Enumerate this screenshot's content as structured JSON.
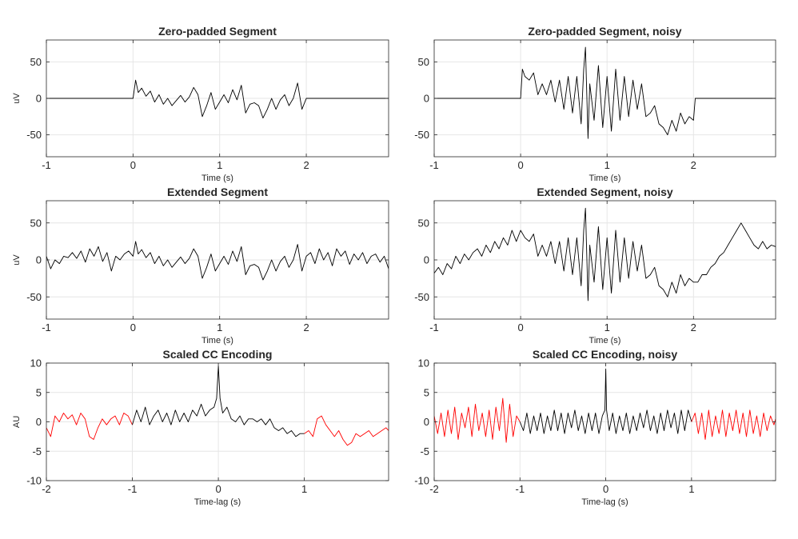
{
  "chart_data": [
    {
      "type": "line",
      "title": "Zero-padded Segment",
      "xlabel": "Time (s)",
      "ylabel": "uV",
      "xlim": [
        -1,
        2.95
      ],
      "ylim": [
        -80,
        80
      ],
      "xticks": [
        -1,
        0,
        1,
        2
      ],
      "yticks": [
        50,
        0,
        -50
      ],
      "grid": true,
      "series": [
        {
          "color": "#000000",
          "x": [
            -1,
            0.0,
            0.03,
            0.06,
            0.1,
            0.15,
            0.2,
            0.25,
            0.3,
            0.35,
            0.4,
            0.45,
            0.5,
            0.55,
            0.6,
            0.65,
            0.7,
            0.75,
            0.8,
            0.85,
            0.9,
            0.95,
            1.0,
            1.05,
            1.1,
            1.15,
            1.2,
            1.25,
            1.3,
            1.35,
            1.4,
            1.45,
            1.5,
            1.55,
            1.6,
            1.65,
            1.7,
            1.75,
            1.8,
            1.85,
            1.9,
            1.95,
            2.0,
            2.95
          ],
          "y": [
            0,
            0,
            25,
            8,
            14,
            3,
            10,
            -5,
            5,
            -8,
            0,
            -10,
            -3,
            4,
            -5,
            2,
            15,
            5,
            -25,
            -10,
            8,
            -15,
            -5,
            5,
            -6,
            12,
            -2,
            18,
            -20,
            -8,
            -6,
            -10,
            -27,
            -15,
            0,
            -15,
            -2,
            5,
            -10,
            0,
            21,
            -15,
            0,
            0
          ]
        }
      ]
    },
    {
      "type": "line",
      "title": "Zero-padded Segment, noisy",
      "xlabel": "Time (s)",
      "ylabel": "",
      "xlim": [
        -1,
        2.95
      ],
      "ylim": [
        -80,
        80
      ],
      "xticks": [
        -1,
        0,
        1,
        2
      ],
      "yticks": [
        50,
        0,
        -50
      ],
      "grid": true,
      "series": [
        {
          "color": "#000000",
          "x": [
            -1,
            0.0,
            0.02,
            0.05,
            0.1,
            0.15,
            0.2,
            0.25,
            0.3,
            0.35,
            0.4,
            0.45,
            0.5,
            0.55,
            0.6,
            0.65,
            0.7,
            0.73,
            0.75,
            0.78,
            0.8,
            0.85,
            0.9,
            0.95,
            1.0,
            1.05,
            1.1,
            1.15,
            1.2,
            1.25,
            1.3,
            1.35,
            1.4,
            1.45,
            1.5,
            1.55,
            1.6,
            1.65,
            1.7,
            1.75,
            1.8,
            1.85,
            1.9,
            1.95,
            2.0,
            2.02,
            2.95
          ],
          "y": [
            0,
            0,
            40,
            30,
            25,
            35,
            5,
            20,
            5,
            25,
            -5,
            25,
            -15,
            30,
            -20,
            30,
            -35,
            40,
            70,
            -55,
            20,
            -30,
            45,
            -40,
            30,
            -45,
            40,
            -30,
            30,
            -25,
            25,
            -15,
            20,
            -25,
            -20,
            -10,
            -35,
            -40,
            -50,
            -30,
            -45,
            -20,
            -35,
            -25,
            -30,
            0,
            0
          ]
        }
      ]
    },
    {
      "type": "line",
      "title": "Extended Segment",
      "xlabel": "Time (s)",
      "ylabel": "uV",
      "xlim": [
        -1,
        2.95
      ],
      "ylim": [
        -80,
        80
      ],
      "xticks": [
        -1,
        0,
        1,
        2
      ],
      "yticks": [
        50,
        0,
        -50
      ],
      "grid": true,
      "series": [
        {
          "color": "#000000",
          "x": [
            -1.0,
            -0.95,
            -0.9,
            -0.85,
            -0.8,
            -0.75,
            -0.7,
            -0.65,
            -0.6,
            -0.55,
            -0.5,
            -0.45,
            -0.4,
            -0.35,
            -0.3,
            -0.25,
            -0.2,
            -0.15,
            -0.1,
            -0.05,
            0.0,
            0.03,
            0.06,
            0.1,
            0.15,
            0.2,
            0.25,
            0.3,
            0.35,
            0.4,
            0.45,
            0.5,
            0.55,
            0.6,
            0.65,
            0.7,
            0.75,
            0.8,
            0.85,
            0.9,
            0.95,
            1.0,
            1.05,
            1.1,
            1.15,
            1.2,
            1.25,
            1.3,
            1.35,
            1.4,
            1.45,
            1.5,
            1.55,
            1.6,
            1.65,
            1.7,
            1.75,
            1.8,
            1.85,
            1.9,
            1.95,
            2.0,
            2.05,
            2.1,
            2.15,
            2.2,
            2.25,
            2.3,
            2.35,
            2.4,
            2.45,
            2.5,
            2.55,
            2.6,
            2.65,
            2.7,
            2.75,
            2.8,
            2.85,
            2.9,
            2.95
          ],
          "y": [
            5,
            -12,
            0,
            -5,
            5,
            3,
            10,
            2,
            12,
            -3,
            15,
            5,
            18,
            -2,
            10,
            -15,
            5,
            0,
            8,
            12,
            5,
            25,
            8,
            14,
            3,
            10,
            -5,
            5,
            -8,
            0,
            -10,
            -3,
            4,
            -5,
            2,
            15,
            5,
            -25,
            -10,
            8,
            -15,
            -5,
            5,
            -6,
            12,
            -2,
            18,
            -20,
            -8,
            -6,
            -10,
            -27,
            -15,
            0,
            -15,
            -2,
            5,
            -10,
            0,
            21,
            -15,
            5,
            10,
            -5,
            15,
            0,
            10,
            -8,
            15,
            5,
            12,
            -6,
            8,
            0,
            10,
            -5,
            5,
            8,
            -3,
            5,
            -12
          ]
        }
      ]
    },
    {
      "type": "line",
      "title": "Extended Segment, noisy",
      "xlabel": "Time (s)",
      "ylabel": "",
      "xlim": [
        -1,
        2.95
      ],
      "ylim": [
        -80,
        80
      ],
      "xticks": [
        -1,
        0,
        1,
        2
      ],
      "yticks": [
        50,
        0,
        -50
      ],
      "grid": true,
      "series": [
        {
          "color": "#000000",
          "x": [
            -1.0,
            -0.95,
            -0.9,
            -0.85,
            -0.8,
            -0.75,
            -0.7,
            -0.65,
            -0.6,
            -0.55,
            -0.5,
            -0.45,
            -0.4,
            -0.35,
            -0.3,
            -0.25,
            -0.2,
            -0.15,
            -0.1,
            -0.05,
            0.0,
            0.05,
            0.1,
            0.15,
            0.2,
            0.25,
            0.3,
            0.35,
            0.4,
            0.45,
            0.5,
            0.55,
            0.6,
            0.65,
            0.7,
            0.73,
            0.75,
            0.78,
            0.8,
            0.85,
            0.9,
            0.95,
            1.0,
            1.05,
            1.1,
            1.15,
            1.2,
            1.25,
            1.3,
            1.35,
            1.4,
            1.45,
            1.5,
            1.55,
            1.6,
            1.65,
            1.7,
            1.75,
            1.8,
            1.85,
            1.9,
            1.95,
            2.0,
            2.05,
            2.1,
            2.15,
            2.2,
            2.25,
            2.3,
            2.35,
            2.4,
            2.45,
            2.5,
            2.55,
            2.6,
            2.65,
            2.7,
            2.75,
            2.8,
            2.85,
            2.9,
            2.95
          ],
          "y": [
            -18,
            -10,
            -20,
            -5,
            -12,
            5,
            -5,
            8,
            0,
            10,
            15,
            5,
            20,
            10,
            25,
            15,
            30,
            20,
            40,
            25,
            40,
            30,
            25,
            35,
            5,
            20,
            5,
            25,
            -5,
            25,
            -15,
            30,
            -20,
            30,
            -35,
            40,
            70,
            -55,
            20,
            -30,
            45,
            -40,
            30,
            -45,
            40,
            -30,
            30,
            -25,
            25,
            -15,
            20,
            -25,
            -20,
            -10,
            -35,
            -40,
            -50,
            -30,
            -45,
            -20,
            -35,
            -25,
            -30,
            -30,
            -20,
            -20,
            -10,
            -5,
            5,
            10,
            20,
            30,
            40,
            50,
            40,
            30,
            20,
            15,
            25,
            15,
            20,
            18
          ]
        }
      ]
    },
    {
      "type": "line",
      "title": "Scaled CC Encoding",
      "xlabel": "Time-lag (s)",
      "ylabel": "AU",
      "xlim": [
        -2,
        1.98
      ],
      "ylim": [
        -10,
        10
      ],
      "xticks": [
        -2,
        -1,
        0,
        1
      ],
      "yticks": [
        10,
        5,
        0,
        -5,
        -10
      ],
      "grid": true,
      "series": [
        {
          "color": "#ff0000",
          "x": [
            -2.0,
            -1.95,
            -1.9,
            -1.85,
            -1.8,
            -1.75,
            -1.7,
            -1.65,
            -1.6,
            -1.55,
            -1.5,
            -1.45,
            -1.4,
            -1.35,
            -1.3,
            -1.25,
            -1.2,
            -1.15,
            -1.1,
            -1.05,
            -1.0
          ],
          "y": [
            -1,
            -2.5,
            1,
            0,
            1.5,
            0.5,
            1.2,
            -0.5,
            1.5,
            0.5,
            -2.5,
            -3,
            -1,
            0.5,
            -0.5,
            0.5,
            1,
            -0.5,
            1.5,
            1,
            -0.5
          ]
        },
        {
          "color": "#000000",
          "x": [
            -1.0,
            -0.95,
            -0.9,
            -0.85,
            -0.8,
            -0.75,
            -0.7,
            -0.65,
            -0.6,
            -0.55,
            -0.5,
            -0.45,
            -0.4,
            -0.35,
            -0.3,
            -0.25,
            -0.2,
            -0.15,
            -0.1,
            -0.05,
            -0.02,
            0.0,
            0.02,
            0.05,
            0.1,
            0.15,
            0.2,
            0.25,
            0.3,
            0.35,
            0.4,
            0.45,
            0.5,
            0.55,
            0.6,
            0.65,
            0.7,
            0.75,
            0.8,
            0.85,
            0.9,
            0.95,
            1.0
          ],
          "y": [
            -0.5,
            2,
            0,
            2.5,
            -0.5,
            1,
            2,
            0,
            1.5,
            -0.5,
            2,
            0,
            1.5,
            0,
            2,
            1,
            3,
            1,
            2,
            2.5,
            4,
            9.5,
            4,
            1.5,
            2.5,
            0.5,
            0,
            1,
            -0.5,
            0.5,
            0.5,
            0,
            0.5,
            -0.5,
            0.5,
            -1,
            -1.5,
            -1,
            -2,
            -1.5,
            -2.5,
            -2,
            -2
          ]
        },
        {
          "color": "#ff0000",
          "x": [
            1.0,
            1.05,
            1.1,
            1.15,
            1.2,
            1.25,
            1.3,
            1.35,
            1.4,
            1.45,
            1.5,
            1.55,
            1.6,
            1.65,
            1.7,
            1.75,
            1.8,
            1.85,
            1.9,
            1.95,
            1.98
          ],
          "y": [
            -2,
            -1.5,
            -2.5,
            0.5,
            1,
            -0.5,
            -1.5,
            -2.5,
            -1.5,
            -3,
            -4,
            -3.5,
            -2,
            -2.5,
            -2,
            -1.5,
            -2.5,
            -2,
            -1.5,
            -1,
            -1.5
          ]
        }
      ]
    },
    {
      "type": "line",
      "title": "Scaled CC Encoding, noisy",
      "xlabel": "Time-lag (s)",
      "ylabel": "",
      "xlim": [
        -2,
        1.98
      ],
      "ylim": [
        -10,
        10
      ],
      "xticks": [
        -2,
        -1,
        0,
        1
      ],
      "yticks": [
        10,
        5,
        0,
        -5,
        -10
      ],
      "grid": true,
      "series": [
        {
          "color": "#ff0000",
          "x": [
            -2.0,
            -1.96,
            -1.92,
            -1.88,
            -1.84,
            -1.8,
            -1.76,
            -1.72,
            -1.68,
            -1.64,
            -1.6,
            -1.56,
            -1.52,
            -1.48,
            -1.44,
            -1.4,
            -1.36,
            -1.32,
            -1.28,
            -1.24,
            -1.2,
            -1.16,
            -1.12,
            -1.08,
            -1.04,
            -1.0
          ],
          "y": [
            1,
            -2,
            1.5,
            -2.5,
            2,
            -2,
            2.5,
            -3,
            1.5,
            -1,
            2.5,
            -2.5,
            3,
            -1.5,
            1.5,
            -2.5,
            2,
            -3,
            2.5,
            -1.5,
            4,
            -3.5,
            3,
            -2.5,
            1,
            0
          ]
        },
        {
          "color": "#000000",
          "x": [
            -1.0,
            -0.96,
            -0.92,
            -0.88,
            -0.84,
            -0.8,
            -0.76,
            -0.72,
            -0.68,
            -0.64,
            -0.6,
            -0.56,
            -0.52,
            -0.48,
            -0.44,
            -0.4,
            -0.36,
            -0.32,
            -0.28,
            -0.24,
            -0.2,
            -0.16,
            -0.12,
            -0.08,
            -0.04,
            -0.01,
            0.0,
            0.01,
            0.04,
            0.08,
            0.12,
            0.16,
            0.2,
            0.24,
            0.28,
            0.32,
            0.36,
            0.4,
            0.44,
            0.48,
            0.52,
            0.56,
            0.6,
            0.64,
            0.68,
            0.72,
            0.76,
            0.8,
            0.84,
            0.88,
            0.92,
            0.96,
            1.0
          ],
          "y": [
            0,
            -1.5,
            1.5,
            -2,
            1,
            -1.5,
            1.5,
            -2,
            1,
            -1.5,
            2,
            -1.5,
            1.5,
            -2,
            1.5,
            -1,
            2,
            -1.5,
            1,
            -2,
            1.5,
            -1.5,
            1.5,
            -2,
            1,
            2,
            9,
            2,
            -1.5,
            1.5,
            -2,
            1,
            -1.5,
            1.5,
            -2,
            1,
            -1.5,
            1.5,
            -1,
            2,
            -1.5,
            1,
            -2,
            1.5,
            -1.5,
            2,
            -1,
            1.5,
            -2,
            2,
            -1.5,
            2,
            0
          ]
        },
        {
          "color": "#ff0000",
          "x": [
            1.0,
            1.04,
            1.08,
            1.12,
            1.16,
            1.2,
            1.24,
            1.28,
            1.32,
            1.36,
            1.4,
            1.44,
            1.48,
            1.52,
            1.56,
            1.6,
            1.64,
            1.68,
            1.72,
            1.76,
            1.8,
            1.84,
            1.88,
            1.92,
            1.96,
            1.98
          ],
          "y": [
            0,
            1.5,
            -2,
            1.5,
            -3,
            2,
            -2.5,
            1,
            -2,
            2,
            -2.5,
            1.5,
            -1.5,
            2,
            -2,
            1.5,
            -2.5,
            2,
            -2,
            1,
            -2.5,
            1.5,
            -1.5,
            1,
            -0.5,
            0.5
          ]
        }
      ]
    }
  ]
}
